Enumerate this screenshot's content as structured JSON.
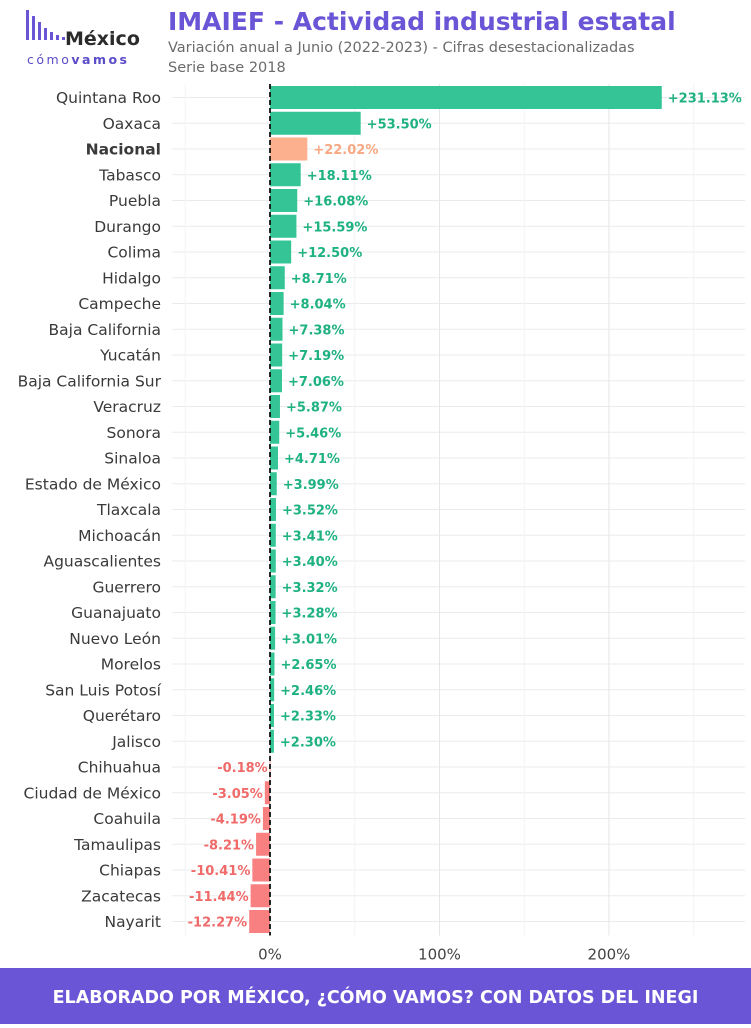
{
  "logo": {
    "name": "México",
    "tagline_a": "cómo",
    "tagline_b": "vamos"
  },
  "header": {
    "title": "IMAIEF - Actividad industrial estatal",
    "subtitle": "Variación anual a Junio (2022-2023) - Cifras desestacionalizadas",
    "subtitle2": "Serie base 2018"
  },
  "footer": {
    "text": "ELABORADO POR MÉXICO, ¿CÓMO VAMOS? CON DATOS DEL INEGI"
  },
  "colors": {
    "positive": "#34c496",
    "positive_label": "#1eb182",
    "negative": "#f98080",
    "negative_label": "#f06a6a",
    "national": "#fcb08e",
    "national_label": "#f8a882",
    "accent": "#6a55d6"
  },
  "chart_data": {
    "type": "bar",
    "orientation": "horizontal",
    "title": "IMAIEF - Actividad industrial estatal",
    "xlim": [
      -15,
      280
    ],
    "x_ticks": [
      0,
      100,
      200
    ],
    "x_tick_labels": [
      "0%",
      "100%",
      "200%"
    ],
    "grid": true,
    "highlight": "Nacional",
    "categories": [
      "Quintana Roo",
      "Oaxaca",
      "Nacional",
      "Tabasco",
      "Puebla",
      "Durango",
      "Colima",
      "Hidalgo",
      "Campeche",
      "Baja California",
      "Yucatán",
      "Baja California Sur",
      "Veracruz",
      "Sonora",
      "Sinaloa",
      "Estado de México",
      "Tlaxcala",
      "Michoacán",
      "Aguascalientes",
      "Guerrero",
      "Guanajuato",
      "Nuevo León",
      "Morelos",
      "San Luis Potosí",
      "Querétaro",
      "Jalisco",
      "Chihuahua",
      "Ciudad de México",
      "Coahuila",
      "Tamaulipas",
      "Chiapas",
      "Zacatecas",
      "Nayarit"
    ],
    "values": [
      231.13,
      53.5,
      22.02,
      18.11,
      16.08,
      15.59,
      12.5,
      8.71,
      8.04,
      7.38,
      7.19,
      7.06,
      5.87,
      5.46,
      4.71,
      3.99,
      3.52,
      3.41,
      3.4,
      3.32,
      3.28,
      3.01,
      2.65,
      2.46,
      2.33,
      2.3,
      -0.18,
      -3.05,
      -4.19,
      -8.21,
      -10.41,
      -11.44,
      -12.27
    ],
    "value_labels": [
      "+231.13%",
      "+53.50%",
      "+22.02%",
      "+18.11%",
      "+16.08%",
      "+15.59%",
      "+12.50%",
      "+8.71%",
      "+8.04%",
      "+7.38%",
      "+7.19%",
      "+7.06%",
      "+5.87%",
      "+5.46%",
      "+4.71%",
      "+3.99%",
      "+3.52%",
      "+3.41%",
      "+3.40%",
      "+3.32%",
      "+3.28%",
      "+3.01%",
      "+2.65%",
      "+2.46%",
      "+2.33%",
      "+2.30%",
      "-0.18%",
      "-3.05%",
      "-4.19%",
      "-8.21%",
      "-10.41%",
      "-11.44%",
      "-12.27%"
    ]
  }
}
